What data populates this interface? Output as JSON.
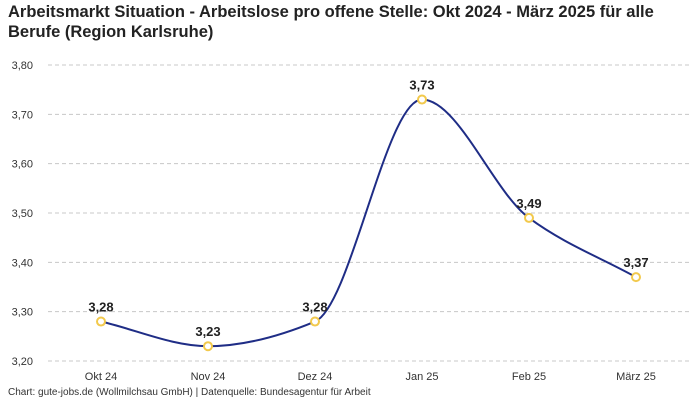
{
  "chart_data": {
    "type": "line",
    "title": "Arbeitsmarkt Situation - Arbeitslose pro offene Stelle: Okt 2024 - März 2025 für alle Berufe (Region Karlsruhe)",
    "categories": [
      "Okt 24",
      "Nov 24",
      "Dez 24",
      "Jan 25",
      "Feb 25",
      "März 25"
    ],
    "series": [
      {
        "values": [
          3.28,
          3.23,
          3.28,
          3.73,
          3.49,
          3.37
        ]
      }
    ],
    "data_labels": [
      "3,28",
      "3,23",
      "3,28",
      "3,73",
      "3,49",
      "3,37"
    ],
    "ylim": [
      3.2,
      3.8
    ],
    "yticks": [
      3.2,
      3.3,
      3.4,
      3.5,
      3.6,
      3.7,
      3.8
    ],
    "ytick_labels": [
      "3,20",
      "3,30",
      "3,40",
      "3,50",
      "3,60",
      "3,70",
      "3,80"
    ],
    "grid": true,
    "line_color": "#1f2d86",
    "marker_fill": "#ffffff",
    "marker_edge": "#f2c94c",
    "footer": "Chart: gute-jobs.de (Wollmilchsau GmbH) | Datenquelle: Bundesagentur für Arbeit"
  }
}
